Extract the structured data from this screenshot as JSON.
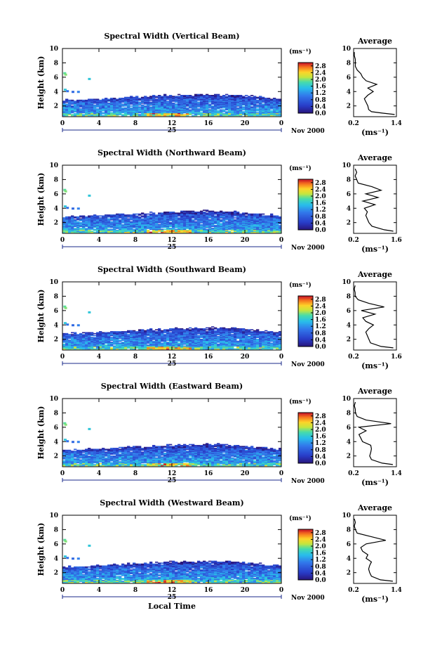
{
  "chart_data": [
    {
      "type": "heatmap",
      "title": "Spectral Width (Vertical Beam)",
      "ylabel": "Height (km)",
      "xlabel": "",
      "x_ticks": [
        "0",
        "4",
        "8",
        "12",
        "16",
        "20",
        "0"
      ],
      "y_ticks": [
        "2",
        "4",
        "6",
        "8",
        "10"
      ],
      "xlim": [
        0,
        24
      ],
      "ylim": [
        0.5,
        10
      ],
      "day_label": "25",
      "month_label": "Nov 2000",
      "colorbar": {
        "unit_label": "(ms⁻¹)",
        "ticks": [
          "0.0",
          "0.4",
          "0.8",
          "1.2",
          "1.6",
          "2.0",
          "2.4",
          "2.8"
        ],
        "range": [
          0,
          3.0
        ]
      },
      "average_profile": {
        "title": "Average",
        "xlabel": "(ms⁻¹)",
        "x_ticks": [
          "0.2",
          "1.4"
        ],
        "xlim": [
          0.2,
          1.4
        ],
        "y_ticks": [
          "2",
          "4",
          "6",
          "8",
          "10"
        ],
        "ylim": [
          0.5,
          10
        ],
        "heights": [
          0.8,
          1.0,
          1.2,
          1.5,
          2.0,
          2.5,
          3.0,
          3.5,
          4.0,
          4.5,
          5.0,
          5.5,
          6.0,
          6.5,
          7.0,
          7.5,
          8.0,
          8.5,
          9.0,
          9.5
        ],
        "values": [
          1.35,
          1.0,
          0.7,
          0.62,
          0.6,
          0.55,
          0.5,
          0.6,
          0.75,
          0.6,
          0.85,
          0.55,
          0.45,
          0.4,
          0.3,
          0.25,
          0.25,
          0.25,
          0.22,
          0.22
        ]
      }
    },
    {
      "type": "heatmap",
      "title": "Spectral Width (Northward Beam)",
      "ylabel": "Height (km)",
      "xlabel": "",
      "x_ticks": [
        "0",
        "4",
        "8",
        "12",
        "16",
        "20",
        "0"
      ],
      "y_ticks": [
        "2",
        "4",
        "6",
        "8",
        "10"
      ],
      "xlim": [
        0,
        24
      ],
      "ylim": [
        0.5,
        10
      ],
      "day_label": "25",
      "month_label": "Nov 2000",
      "colorbar": {
        "unit_label": "(ms⁻¹)",
        "ticks": [
          "0.0",
          "0.4",
          "0.8",
          "1.2",
          "1.6",
          "2.0",
          "2.4",
          "2.8"
        ],
        "range": [
          0,
          3.0
        ]
      },
      "average_profile": {
        "title": "Average",
        "xlabel": "(ms⁻¹)",
        "x_ticks": [
          "0.2",
          "1.6"
        ],
        "xlim": [
          0.2,
          1.6
        ],
        "y_ticks": [
          "2",
          "4",
          "6",
          "8",
          "10"
        ],
        "ylim": [
          0.5,
          10
        ],
        "heights": [
          0.8,
          1.0,
          1.5,
          2.0,
          2.5,
          3.0,
          3.5,
          4.0,
          4.5,
          5.0,
          5.5,
          6.0,
          6.5,
          7.0,
          7.5,
          8.0,
          8.5,
          9.0,
          9.5
        ],
        "values": [
          1.5,
          1.2,
          0.8,
          0.7,
          0.65,
          0.6,
          0.65,
          0.55,
          0.9,
          0.5,
          1.0,
          0.6,
          1.1,
          0.8,
          0.35,
          0.3,
          0.25,
          0.3,
          0.25
        ]
      }
    },
    {
      "type": "heatmap",
      "title": "Spectral Width (Southward Beam)",
      "ylabel": "Height (km)",
      "xlabel": "",
      "x_ticks": [
        "0",
        "4",
        "8",
        "12",
        "16",
        "20",
        "0"
      ],
      "y_ticks": [
        "2",
        "4",
        "6",
        "8",
        "10"
      ],
      "xlim": [
        0,
        24
      ],
      "ylim": [
        0.5,
        10
      ],
      "day_label": "25",
      "month_label": "Nov 2000",
      "colorbar": {
        "unit_label": "(ms⁻¹)",
        "ticks": [
          "0.0",
          "0.4",
          "0.8",
          "1.2",
          "1.6",
          "2.0",
          "2.4",
          "2.8"
        ],
        "range": [
          0,
          3.0
        ]
      },
      "average_profile": {
        "title": "Average",
        "xlabel": "(ms⁻¹)",
        "x_ticks": [
          "0.2",
          "1.6"
        ],
        "xlim": [
          0.2,
          1.6
        ],
        "y_ticks": [
          "2",
          "4",
          "6",
          "8",
          "10"
        ],
        "ylim": [
          0.5,
          10
        ],
        "heights": [
          0.8,
          1.0,
          1.5,
          2.0,
          2.5,
          3.0,
          3.5,
          4.0,
          4.5,
          5.0,
          5.5,
          6.0,
          6.5,
          7.0,
          7.5,
          8.0,
          8.5,
          9.0,
          9.5
        ],
        "values": [
          1.5,
          1.1,
          0.75,
          0.7,
          0.65,
          0.6,
          0.7,
          0.85,
          0.6,
          0.5,
          0.9,
          0.45,
          1.2,
          0.7,
          0.35,
          0.25,
          0.25,
          0.22,
          0.25
        ]
      }
    },
    {
      "type": "heatmap",
      "title": "Spectral Width (Eastward Beam)",
      "ylabel": "Height (km)",
      "xlabel": "",
      "x_ticks": [
        "0",
        "4",
        "8",
        "12",
        "16",
        "20",
        "0"
      ],
      "y_ticks": [
        "2",
        "4",
        "6",
        "8",
        "10"
      ],
      "xlim": [
        0,
        24
      ],
      "ylim": [
        0.5,
        10
      ],
      "day_label": "25",
      "month_label": "Nov 2000",
      "colorbar": {
        "unit_label": "(ms⁻¹)",
        "ticks": [
          "0.0",
          "0.4",
          "0.8",
          "1.2",
          "1.6",
          "2.0",
          "2.4",
          "2.8"
        ],
        "range": [
          0,
          3.0
        ]
      },
      "average_profile": {
        "title": "Average",
        "xlabel": "(ms⁻¹)",
        "x_ticks": [
          "0.2",
          "1.4"
        ],
        "xlim": [
          0.2,
          1.4
        ],
        "y_ticks": [
          "2",
          "4",
          "6",
          "8",
          "10"
        ],
        "ylim": [
          0.5,
          10
        ],
        "heights": [
          0.8,
          1.0,
          1.5,
          2.0,
          2.5,
          3.0,
          3.5,
          4.0,
          4.5,
          5.0,
          5.5,
          6.0,
          6.5,
          7.0,
          7.5,
          8.0,
          8.5,
          9.0,
          9.5
        ],
        "values": [
          1.3,
          1.0,
          0.7,
          0.65,
          0.68,
          0.7,
          0.68,
          0.45,
          0.4,
          0.35,
          0.55,
          0.35,
          1.25,
          0.55,
          0.3,
          0.25,
          0.25,
          0.22,
          0.25
        ]
      }
    },
    {
      "type": "heatmap",
      "title": "Spectral Width (Westward Beam)",
      "ylabel": "Height (km)",
      "xlabel": "Local Time",
      "x_ticks": [
        "0",
        "4",
        "8",
        "12",
        "16",
        "20",
        "0"
      ],
      "y_ticks": [
        "2",
        "4",
        "6",
        "8",
        "10"
      ],
      "xlim": [
        0,
        24
      ],
      "ylim": [
        0.5,
        10
      ],
      "day_label": "25",
      "month_label": "Nov 2000",
      "colorbar": {
        "unit_label": "(ms⁻¹)",
        "ticks": [
          "0.0",
          "0.4",
          "0.8",
          "1.2",
          "1.6",
          "2.0",
          "2.4",
          "2.8"
        ],
        "range": [
          0,
          3.0
        ]
      },
      "average_profile": {
        "title": "Average",
        "xlabel": "(ms⁻¹)",
        "x_ticks": [
          "0.2",
          "1.4"
        ],
        "xlim": [
          0.2,
          1.4
        ],
        "y_ticks": [
          "2",
          "4",
          "6",
          "8",
          "10"
        ],
        "ylim": [
          0.5,
          10
        ],
        "heights": [
          0.8,
          1.0,
          1.5,
          2.0,
          2.5,
          3.0,
          3.5,
          4.0,
          4.5,
          5.0,
          5.5,
          6.0,
          6.5,
          7.0,
          7.5,
          8.0,
          8.5,
          9.0,
          9.5
        ],
        "values": [
          1.3,
          0.95,
          0.7,
          0.65,
          0.62,
          0.65,
          0.7,
          0.55,
          0.6,
          0.45,
          0.4,
          0.55,
          1.1,
          0.7,
          0.3,
          0.25,
          0.22,
          0.25,
          0.22
        ]
      }
    }
  ]
}
